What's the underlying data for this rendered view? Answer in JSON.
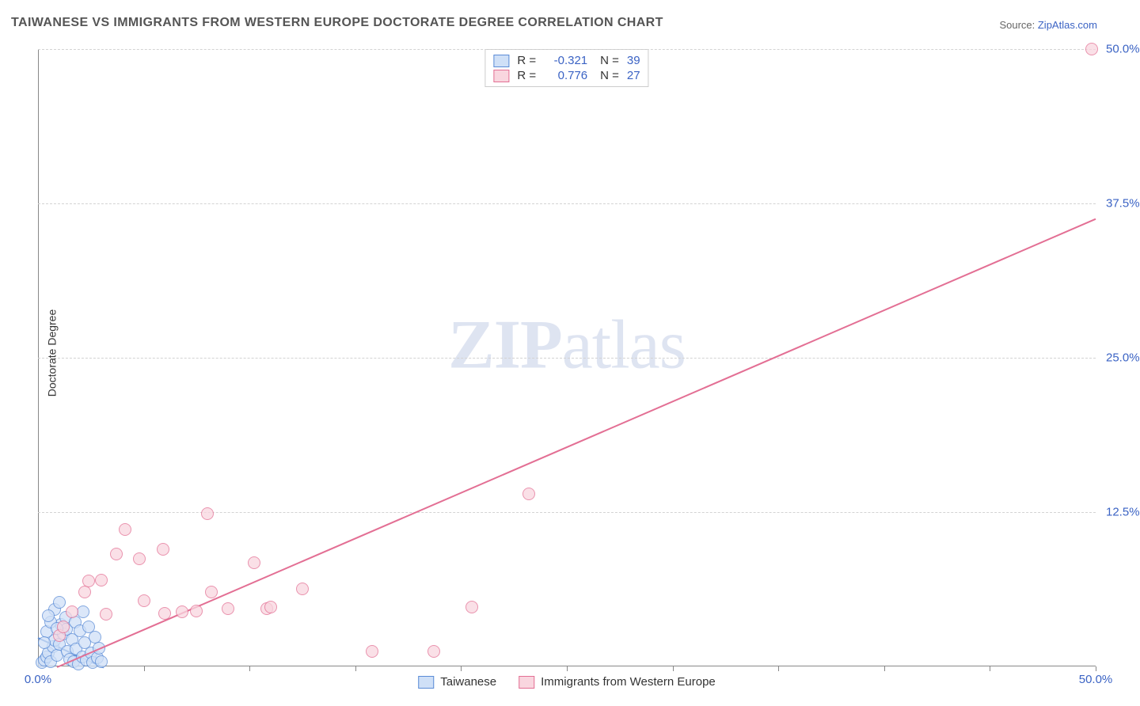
{
  "title": "TAIWANESE VS IMMIGRANTS FROM WESTERN EUROPE DOCTORATE DEGREE CORRELATION CHART",
  "source_prefix": "Source: ",
  "source_name": "ZipAtlas.com",
  "y_axis_label": "Doctorate Degree",
  "watermark_a": "ZIP",
  "watermark_b": "atlas",
  "chart": {
    "type": "scatter",
    "background": "#ffffff",
    "grid_color": "#d3d3d3",
    "axis_color": "#888888",
    "xlim": [
      0,
      50
    ],
    "ylim": [
      0,
      50
    ],
    "y_ticks": [
      12.5,
      25.0,
      37.5,
      50.0
    ],
    "y_tick_labels": [
      "12.5%",
      "25.0%",
      "37.5%",
      "50.0%"
    ],
    "x_ticks": [
      5,
      10,
      15,
      20,
      25,
      30,
      35,
      40,
      45,
      50
    ],
    "x_origin_label": "0.0%",
    "x_max_label": "50.0%",
    "marker_radius": 8,
    "series": [
      {
        "key": "taiwanese",
        "label": "Taiwanese",
        "fill": "#cfe0f7",
        "stroke": "#5a8bd6",
        "opacity": 0.75,
        "r_value": "-0.321",
        "n_value": "39",
        "trend": {
          "x1": 0.0,
          "y1": 2.4,
          "x2": 3.1,
          "y2": 0.0,
          "width": 2
        },
        "points": [
          [
            0.2,
            0.3
          ],
          [
            0.3,
            0.5
          ],
          [
            0.4,
            0.8
          ],
          [
            0.5,
            1.1
          ],
          [
            0.6,
            0.4
          ],
          [
            0.7,
            1.6
          ],
          [
            0.8,
            2.1
          ],
          [
            0.9,
            0.9
          ],
          [
            1.0,
            1.8
          ],
          [
            1.1,
            3.4
          ],
          [
            1.2,
            2.6
          ],
          [
            1.3,
            4.0
          ],
          [
            1.35,
            3.0
          ],
          [
            1.4,
            1.2
          ],
          [
            1.5,
            0.6
          ],
          [
            1.6,
            2.2
          ],
          [
            1.7,
            0.4
          ],
          [
            1.75,
            3.6
          ],
          [
            1.8,
            1.4
          ],
          [
            1.9,
            0.2
          ],
          [
            2.0,
            2.9
          ],
          [
            2.1,
            0.8
          ],
          [
            2.15,
            4.4
          ],
          [
            2.2,
            1.9
          ],
          [
            2.3,
            0.5
          ],
          [
            2.4,
            3.2
          ],
          [
            2.5,
            1.1
          ],
          [
            2.6,
            0.3
          ],
          [
            2.7,
            2.4
          ],
          [
            2.8,
            0.7
          ],
          [
            2.9,
            1.5
          ],
          [
            3.0,
            0.4
          ],
          [
            0.4,
            2.8
          ],
          [
            0.6,
            3.6
          ],
          [
            0.8,
            4.6
          ],
          [
            0.5,
            4.1
          ],
          [
            0.9,
            3.1
          ],
          [
            0.3,
            1.9
          ],
          [
            1.0,
            5.2
          ]
        ]
      },
      {
        "key": "western_europe",
        "label": "Immigrants from Western Europe",
        "fill": "#f9d6df",
        "stroke": "#e36f94",
        "opacity": 0.75,
        "r_value": "0.776",
        "n_value": "27",
        "trend": {
          "x1": 0.9,
          "y1": 0.0,
          "x2": 50.0,
          "y2": 36.3,
          "width": 2
        },
        "points": [
          [
            1.6,
            4.4
          ],
          [
            2.2,
            6.0
          ],
          [
            2.4,
            6.9
          ],
          [
            3.0,
            7.0
          ],
          [
            3.7,
            9.1
          ],
          [
            4.1,
            11.1
          ],
          [
            4.8,
            8.7
          ],
          [
            5.9,
            9.5
          ],
          [
            6.0,
            4.3
          ],
          [
            6.8,
            4.4
          ],
          [
            7.5,
            4.5
          ],
          [
            8.0,
            12.4
          ],
          [
            8.2,
            6.0
          ],
          [
            9.0,
            4.7
          ],
          [
            10.2,
            8.4
          ],
          [
            10.8,
            4.7
          ],
          [
            11.0,
            4.8
          ],
          [
            12.5,
            6.3
          ],
          [
            15.8,
            1.2
          ],
          [
            18.7,
            1.2
          ],
          [
            20.5,
            4.8
          ],
          [
            23.2,
            14.0
          ],
          [
            49.8,
            50.0
          ],
          [
            1.0,
            2.5
          ],
          [
            1.2,
            3.2
          ],
          [
            3.2,
            4.2
          ],
          [
            5.0,
            5.3
          ]
        ]
      }
    ]
  },
  "colors": {
    "tick_label": "#3b63c4",
    "title": "#555555",
    "text": "#333333"
  }
}
